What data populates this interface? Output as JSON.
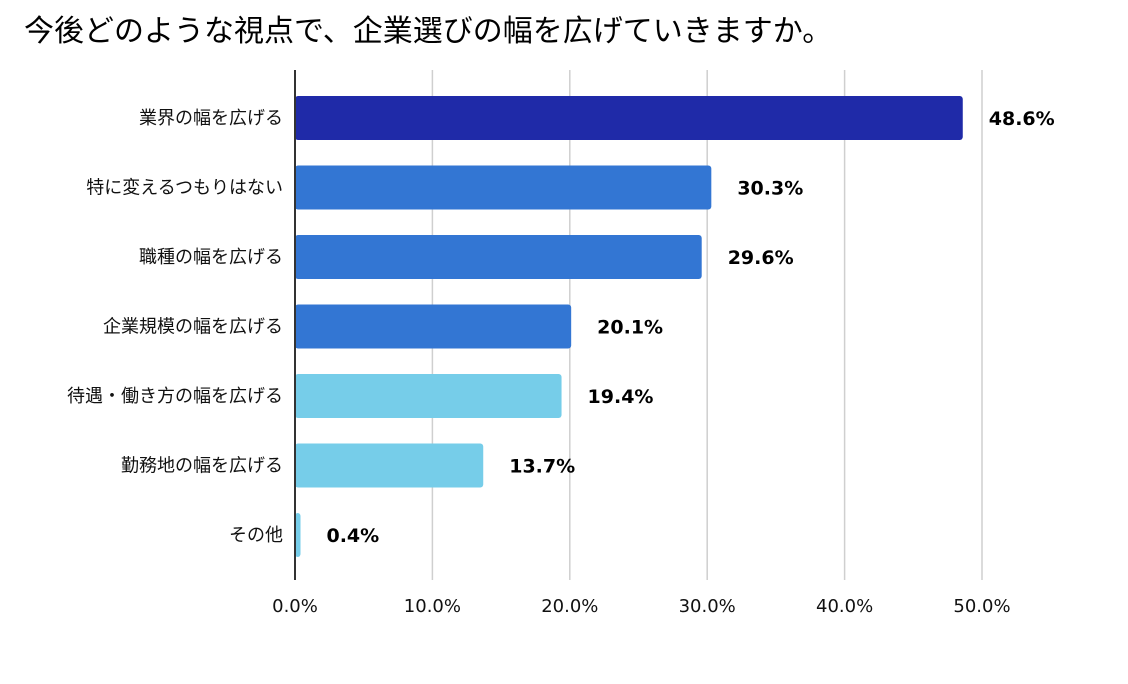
{
  "chart_data": {
    "type": "bar",
    "orientation": "horizontal",
    "title": "今後どのような視点で、企業選びの幅を広げていきますか。",
    "categories": [
      "業界の幅を広げる",
      "特に変えるつもりはない",
      "職種の幅を広げる",
      "企業規模の幅を広げる",
      "待遇・働き方の幅を広げる",
      "勤務地の幅を広げる",
      "その他"
    ],
    "values": [
      48.6,
      30.3,
      29.6,
      20.1,
      19.4,
      13.7,
      0.4
    ],
    "data_labels": [
      "48.6%",
      "30.3%",
      "29.6%",
      "20.1%",
      "19.4%",
      "13.7%",
      "0.4%"
    ],
    "bar_colors": [
      "#1f2aa8",
      "#3376d3",
      "#3376d3",
      "#3376d3",
      "#76cde9",
      "#76cde9",
      "#76cde9"
    ],
    "xlim": [
      0,
      50
    ],
    "xticks": [
      0,
      10,
      20,
      30,
      40,
      50
    ],
    "xtick_labels": [
      "0.0%",
      "10.0%",
      "20.0%",
      "30.0%",
      "40.0%",
      "50.0%"
    ],
    "grid": true,
    "legend": false,
    "xlabel": "",
    "ylabel": ""
  }
}
